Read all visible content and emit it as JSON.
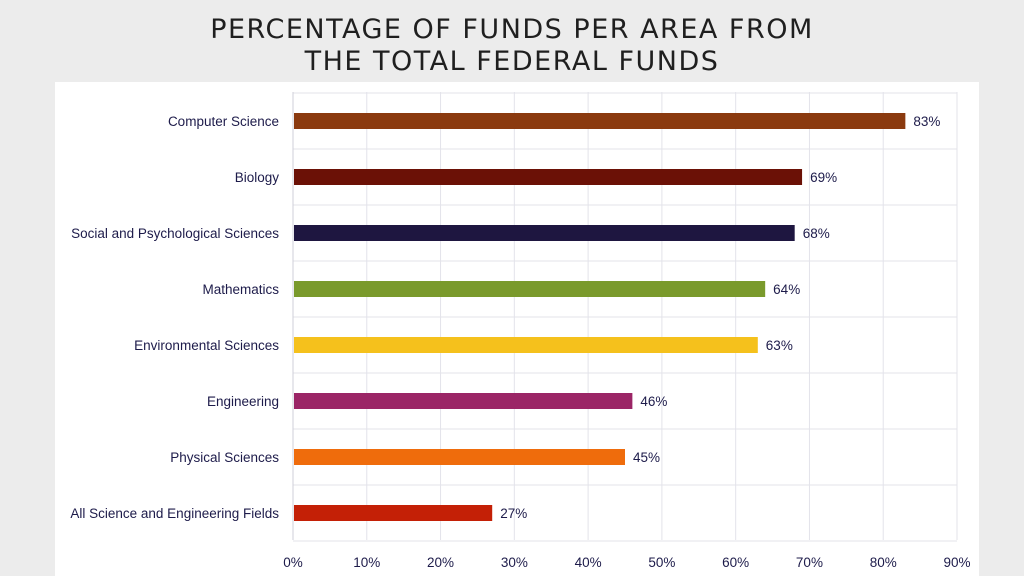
{
  "title_lines": [
    "PERCENTAGE OF FUNDS PER AREA FROM",
    "THE TOTAL FEDERAL FUNDS"
  ],
  "chart_data": {
    "type": "bar",
    "orientation": "horizontal",
    "title": "PERCENTAGE OF FUNDS PER AREA FROM THE TOTAL FEDERAL FUNDS",
    "categories": [
      "Computer Science",
      "Biology",
      "Social and Psychological Sciences",
      "Mathematics",
      "Environmental Sciences",
      "Engineering",
      "Physical Sciences",
      "All Science and Engineering Fields"
    ],
    "values": [
      83,
      69,
      68,
      64,
      63,
      46,
      45,
      27
    ],
    "value_labels": [
      "83%",
      "69%",
      "68%",
      "64%",
      "63%",
      "46%",
      "45%",
      "27%"
    ],
    "colors": [
      "#8b3a0f",
      "#6b1106",
      "#1e1640",
      "#7a9a2c",
      "#f5c11c",
      "#9b2566",
      "#ef6c0c",
      "#c42006"
    ],
    "xlim": [
      0,
      90
    ],
    "x_ticks": [
      0,
      10,
      20,
      30,
      40,
      50,
      60,
      70,
      80,
      90
    ],
    "x_tick_labels": [
      "0%",
      "10%",
      "20%",
      "30%",
      "40%",
      "50%",
      "60%",
      "70%",
      "80%",
      "90%"
    ],
    "xlabel": "",
    "ylabel": "",
    "grid": true,
    "legend": false
  }
}
